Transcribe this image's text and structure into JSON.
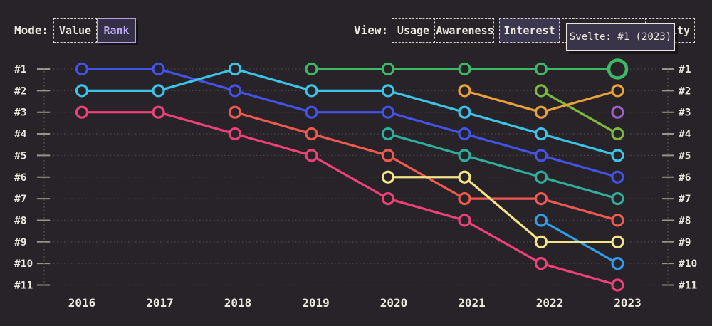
{
  "header": {
    "mode": {
      "label": "Mode:",
      "options": [
        {
          "label": "Value",
          "selected": false
        },
        {
          "label": "Rank",
          "selected": true
        }
      ]
    },
    "view": {
      "label": "View:",
      "options": [
        {
          "label": "Usage",
          "selected": false
        },
        {
          "label": "Awareness",
          "selected": false
        },
        {
          "label": "Interest",
          "selected": true
        },
        {
          "label": "",
          "selected": false
        },
        {
          "label": "Positivity",
          "selected": false
        }
      ]
    }
  },
  "tooltip": {
    "text": "Svelte: #1 (2023)"
  },
  "colors": {
    "background": "#282328",
    "text": "#ebe6de",
    "gridline": "#4c4741",
    "axis": "#5e5850",
    "tick": "#9a948b",
    "accent_purple": "#b3a2e6",
    "tooltip_bg": "#3a3449"
  },
  "chart_data": {
    "type": "line",
    "subtype": "bump-rank-chart",
    "x_labels": [
      "2016",
      "2017",
      "2018",
      "2019",
      "2020",
      "2021",
      "2022",
      "2023"
    ],
    "rank_labels": [
      "#1",
      "#2",
      "#3",
      "#4",
      "#5",
      "#6",
      "#7",
      "#8",
      "#9",
      "#10",
      "#11"
    ],
    "ylim": [
      1,
      11
    ],
    "grid": "dotted",
    "legend": "none",
    "series": [
      {
        "name": "series-pink",
        "color": "#ee4179",
        "points": [
          [
            2016,
            3
          ],
          [
            2017,
            3
          ],
          [
            2018,
            4
          ],
          [
            2019,
            5
          ],
          [
            2020,
            7
          ],
          [
            2021,
            8
          ],
          [
            2022,
            10
          ],
          [
            2023,
            11
          ]
        ]
      },
      {
        "name": "series-salmon",
        "color": "#ee5a4f",
        "points": [
          [
            2018,
            3
          ],
          [
            2019,
            4
          ],
          [
            2020,
            5
          ],
          [
            2021,
            7
          ],
          [
            2022,
            7
          ],
          [
            2023,
            8
          ]
        ]
      },
      {
        "name": "series-sky-blue",
        "color": "#2f9de8",
        "points": [
          [
            2022,
            8
          ],
          [
            2023,
            10
          ]
        ]
      },
      {
        "name": "series-yellow",
        "color": "#f2e488",
        "points": [
          [
            2020,
            6
          ],
          [
            2021,
            6
          ],
          [
            2022,
            9
          ],
          [
            2023,
            9
          ]
        ]
      },
      {
        "name": "series-teal",
        "color": "#2fae9b",
        "points": [
          [
            2020,
            4
          ],
          [
            2021,
            5
          ],
          [
            2022,
            6
          ],
          [
            2023,
            7
          ]
        ]
      },
      {
        "name": "series-royal-blue",
        "color": "#4353e8",
        "points": [
          [
            2016,
            1
          ],
          [
            2017,
            1
          ],
          [
            2018,
            2
          ],
          [
            2019,
            3
          ],
          [
            2020,
            3
          ],
          [
            2021,
            4
          ],
          [
            2022,
            5
          ],
          [
            2023,
            6
          ]
        ]
      },
      {
        "name": "series-cyan",
        "color": "#3cc3e6",
        "points": [
          [
            2016,
            2
          ],
          [
            2017,
            2
          ],
          [
            2018,
            1
          ],
          [
            2019,
            2
          ],
          [
            2020,
            2
          ],
          [
            2021,
            3
          ],
          [
            2022,
            4
          ],
          [
            2023,
            5
          ]
        ]
      },
      {
        "name": "series-lime-green",
        "color": "#7cb73f",
        "points": [
          [
            2022,
            2
          ],
          [
            2023,
            4
          ]
        ]
      },
      {
        "name": "series-orange",
        "color": "#e9a23b",
        "points": [
          [
            2021,
            2
          ],
          [
            2022,
            3
          ],
          [
            2023,
            2
          ]
        ]
      },
      {
        "name": "Svelte",
        "color": "#3fb967",
        "points": [
          [
            2019,
            1
          ],
          [
            2020,
            1
          ],
          [
            2021,
            1
          ],
          [
            2022,
            1
          ],
          [
            2023,
            1
          ]
        ]
      },
      {
        "name": "series-purple",
        "color": "#9d61c6",
        "points": [
          [
            2023,
            3
          ]
        ]
      }
    ],
    "highlight": {
      "series": "Svelte",
      "year": 2023,
      "rank": 1,
      "tooltip": "Svelte: #1 (2023)"
    }
  }
}
